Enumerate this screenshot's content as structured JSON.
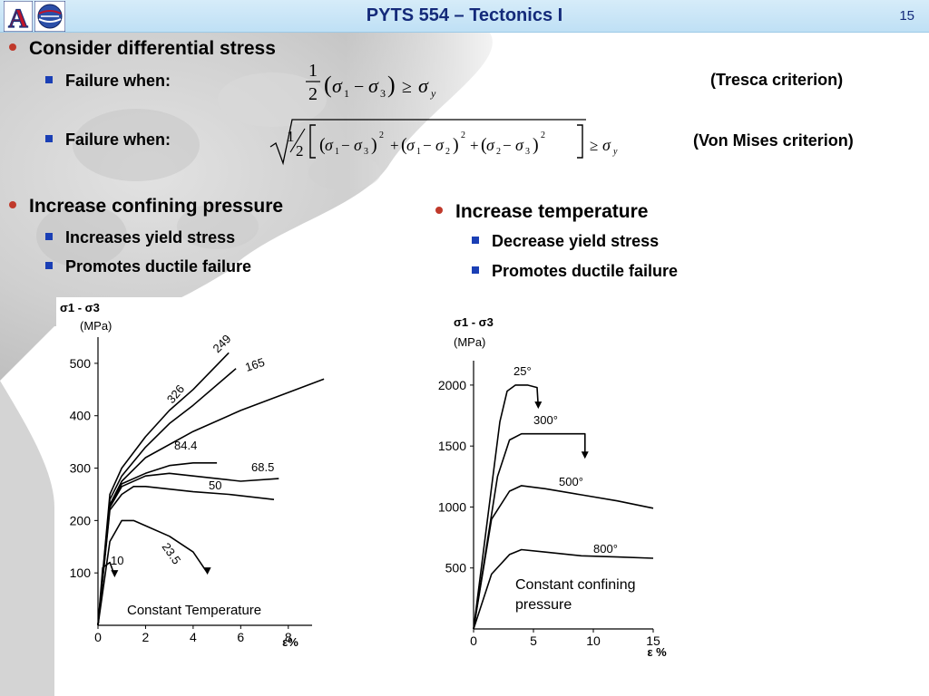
{
  "header": {
    "title": "PYTS 554 – Tectonics I",
    "slide_number": "15",
    "logo_letter": "A"
  },
  "bullets": {
    "differential": {
      "label": "Consider differential stress",
      "items": [
        {
          "label": "Failure when:",
          "criterion": "(Tresca criterion)"
        },
        {
          "label": "Failure when:",
          "criterion": "(Von Mises criterion)"
        }
      ]
    },
    "confining": {
      "label": "Increase confining pressure",
      "items": [
        "Increases yield stress",
        "Promotes ductile failure"
      ]
    },
    "temperature": {
      "label": "Increase temperature",
      "items": [
        "Decrease yield stress",
        "Promotes ductile failure"
      ]
    }
  },
  "equations": {
    "tresca": {
      "frac_num": "1",
      "frac_den": "2",
      "lparen": "(",
      "rparen": ")",
      "s1": "σ",
      "sub1": "1",
      "minus": "−",
      "s3": "σ",
      "sub3": "3",
      "geq": "≥",
      "sy": "σ",
      "suby": "y"
    },
    "vonmises": {
      "frac_num": "1",
      "frac_den": "2",
      "s": "σ",
      "minus": "−",
      "plus": "+",
      "geq": "≥",
      "suby": "y",
      "sq": "2",
      "sub1": "1",
      "sub2": "2",
      "sub3": "3"
    }
  },
  "colors": {
    "title": "#142a7a",
    "bullet_l1": "#c0392b",
    "bullet_l2": "#1a3fb5"
  },
  "chart_data": [
    {
      "type": "line",
      "ylabel": "σ1 - σ3",
      "yunit": "(MPa)",
      "xlabel": "ε%",
      "annotation": "Constant Temperature",
      "xlim": [
        0,
        9
      ],
      "ylim": [
        0,
        550
      ],
      "xticks": [
        "0",
        "2",
        "4",
        "6",
        "8"
      ],
      "yticks": [
        "100",
        "200",
        "300",
        "400",
        "500"
      ],
      "series": [
        {
          "name": "326",
          "x": [
            0,
            0.5,
            1,
            2,
            3,
            4,
            5.5
          ],
          "y": [
            0,
            250,
            300,
            360,
            410,
            450,
            520
          ]
        },
        {
          "name": "249",
          "x": [
            0,
            0.5,
            1,
            2,
            3,
            4,
            5.8
          ],
          "y": [
            0,
            240,
            285,
            340,
            385,
            420,
            490
          ]
        },
        {
          "name": "165",
          "x": [
            0,
            0.5,
            1,
            2,
            4,
            6,
            9.5
          ],
          "y": [
            0,
            230,
            275,
            320,
            370,
            410,
            470
          ]
        },
        {
          "name": "84.4",
          "x": [
            0,
            0.5,
            1,
            2,
            3,
            4,
            5
          ],
          "y": [
            0,
            230,
            270,
            290,
            305,
            310,
            310
          ]
        },
        {
          "name": "68.5",
          "x": [
            0,
            0.5,
            1,
            2,
            3,
            4,
            5,
            6,
            7.6
          ],
          "y": [
            0,
            225,
            265,
            285,
            290,
            285,
            280,
            275,
            280
          ]
        },
        {
          "name": "50",
          "x": [
            0,
            0.5,
            1,
            1.5,
            2,
            3,
            4,
            5.5,
            7.4
          ],
          "y": [
            0,
            220,
            250,
            265,
            265,
            260,
            255,
            250,
            240
          ]
        },
        {
          "name": "23.5",
          "x": [
            0,
            0.5,
            1,
            1.5,
            2,
            3,
            4,
            4.6
          ],
          "y": [
            0,
            160,
            200,
            200,
            190,
            170,
            140,
            100
          ]
        },
        {
          "name": "10",
          "x": [
            0,
            0.2,
            0.5,
            0.7
          ],
          "y": [
            0,
            110,
            120,
            95
          ]
        }
      ]
    },
    {
      "type": "line",
      "ylabel": "σ1 - σ3",
      "yunit": "(MPa)",
      "xlabel": "ε %",
      "annotation": "Constant confining pressure",
      "xlim": [
        0,
        15
      ],
      "ylim": [
        0,
        2200
      ],
      "xticks": [
        "0",
        "5",
        "10",
        "15"
      ],
      "yticks": [
        "500",
        "1000",
        "1500",
        "2000"
      ],
      "series": [
        {
          "name": "25°",
          "x": [
            0,
            2.2,
            2.8,
            3.5,
            4.5,
            5.3,
            5.4
          ],
          "y": [
            0,
            1700,
            1950,
            2000,
            2000,
            1980,
            1820
          ]
        },
        {
          "name": "300°",
          "x": [
            0,
            2,
            3,
            4,
            6,
            9,
            9.3,
            9.3
          ],
          "y": [
            0,
            1250,
            1550,
            1600,
            1600,
            1600,
            1600,
            1410
          ]
        },
        {
          "name": "500°",
          "x": [
            0,
            1.5,
            3,
            4,
            6,
            9,
            12,
            15
          ],
          "y": [
            0,
            900,
            1130,
            1175,
            1150,
            1100,
            1050,
            990
          ]
        },
        {
          "name": "800°",
          "x": [
            0,
            1.5,
            3,
            4,
            6,
            9,
            12,
            15
          ],
          "y": [
            0,
            450,
            610,
            650,
            630,
            600,
            590,
            580
          ]
        }
      ]
    }
  ]
}
